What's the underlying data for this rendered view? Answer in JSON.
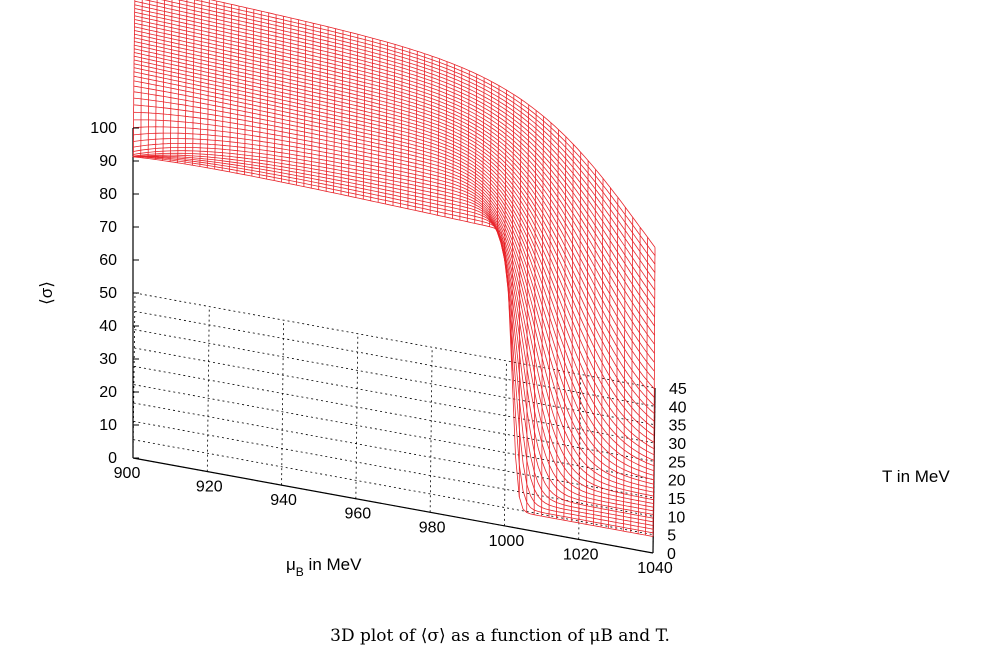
{
  "chart_data": {
    "type": "surface",
    "x_axis": {
      "label_main": "μ",
      "label_sub": "B",
      "label_rest": " in MeV",
      "range": [
        900,
        1040
      ],
      "ticks": [
        "900",
        "920",
        "940",
        "960",
        "980",
        "1000",
        "1020",
        "1040"
      ]
    },
    "y_axis": {
      "label": "T in MeV",
      "range": [
        0,
        45
      ],
      "ticks": [
        "0",
        "5",
        "10",
        "15",
        "20",
        "25",
        "30",
        "35",
        "40",
        "45"
      ]
    },
    "z_axis": {
      "label": "⟨σ⟩",
      "range": [
        0,
        100
      ],
      "ticks": [
        "0",
        "10",
        "20",
        "30",
        "40",
        "50",
        "60",
        "70",
        "80",
        "90",
        "100"
      ]
    },
    "surface": {
      "plateau_value": 94,
      "low_value": 5,
      "transition_mu_at_T0": 1002,
      "transition_mu_at_T45": 1037,
      "mesh_color": "#e8242a"
    },
    "grid": true
  },
  "caption": "3D plot of ⟨σ⟩ as a function of μB and T."
}
